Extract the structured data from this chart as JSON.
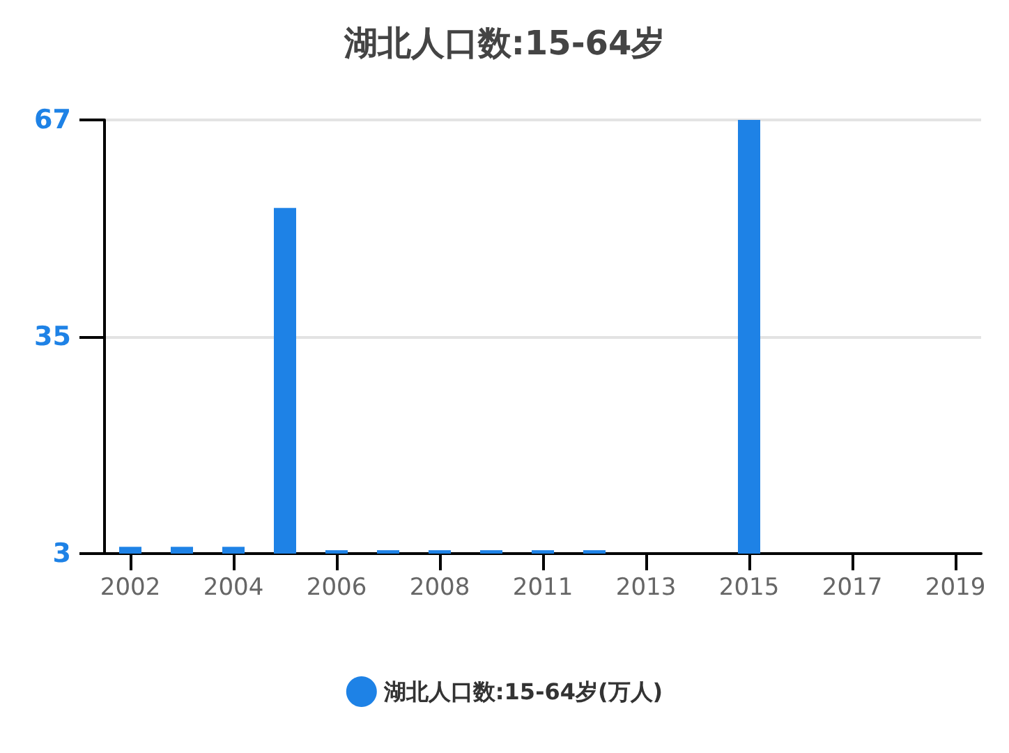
{
  "chart_data": {
    "type": "bar",
    "title": "湖北人口数:15-64岁",
    "categories": [
      "2002",
      null,
      "2004",
      null,
      "2006",
      null,
      "2008",
      null,
      "2011",
      null,
      "2013",
      null,
      "2015",
      null,
      "2017",
      null,
      "2019"
    ],
    "series": [
      {
        "name": "湖北人口数:15-64岁(万人)",
        "color": "#1e82e6",
        "values": [
          4,
          4,
          4,
          54,
          3.5,
          3.5,
          3.5,
          3.5,
          3.5,
          3.5,
          null,
          null,
          67,
          null,
          null,
          null,
          null
        ]
      }
    ],
    "ylim": [
      3,
      67
    ],
    "yticks": [
      3,
      35,
      67
    ],
    "grid": "y",
    "legend": "bottom"
  }
}
